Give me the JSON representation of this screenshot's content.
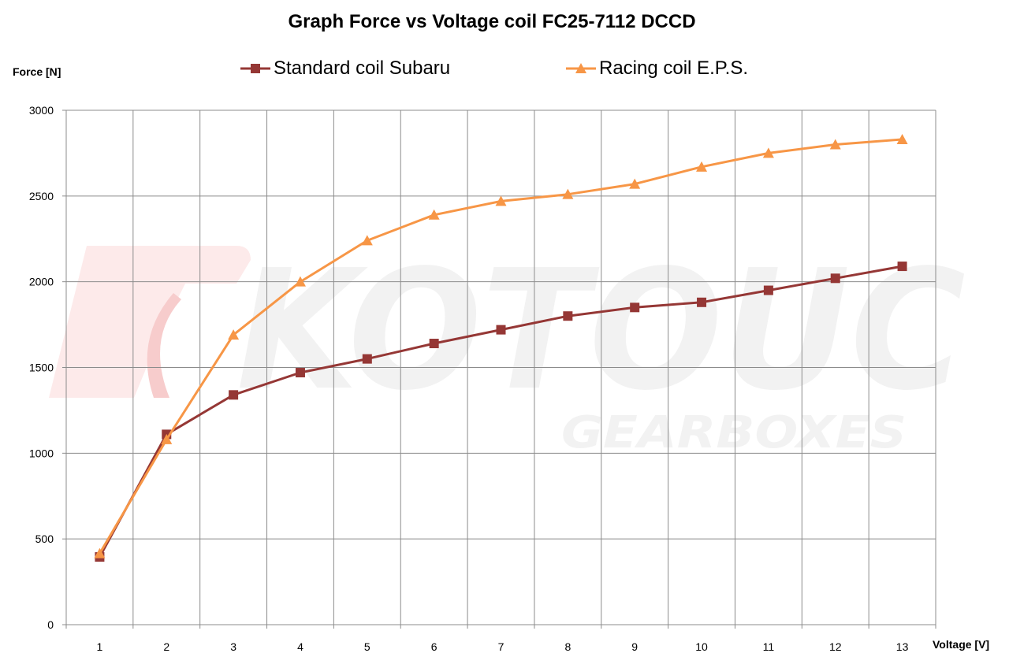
{
  "chart_data": {
    "type": "line",
    "title": "Graph Force vs Voltage coil FC25-7112 DCCD",
    "xlabel": "Voltage [V]",
    "ylabel": "Force [N]",
    "x": [
      1,
      2,
      3,
      4,
      5,
      6,
      7,
      8,
      9,
      10,
      11,
      12,
      13
    ],
    "ylim": [
      0,
      3000
    ],
    "yticks": [
      0,
      500,
      1000,
      1500,
      2000,
      2500,
      3000
    ],
    "grid": true,
    "legend_position": "top",
    "series": [
      {
        "name": "Standard coil Subaru",
        "marker": "square",
        "color": "#953735",
        "values": [
          395,
          1110,
          1340,
          1470,
          1550,
          1640,
          1720,
          1800,
          1850,
          1880,
          1950,
          2020,
          2090
        ]
      },
      {
        "name": "Racing coil E.P.S.",
        "marker": "triangle",
        "color": "#f79646",
        "values": [
          415,
          1080,
          1690,
          2000,
          2240,
          2390,
          2470,
          2510,
          2570,
          2670,
          2750,
          2800,
          2830
        ]
      }
    ]
  },
  "watermark": {
    "brand": "KOTOUC",
    "sub": "GEARBOXES"
  }
}
